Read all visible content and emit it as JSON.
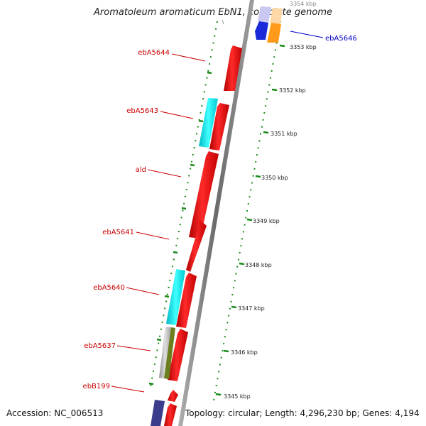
{
  "title": "Aromatoleum aromaticum EbN1, complete genome",
  "footer": {
    "accession": "Accession: NC_006513",
    "summary": "Topology: circular; Length: 4,296,230 bp; Genes: 4,194"
  },
  "colors": {
    "gene_red": "#ff1a1a",
    "cyan": "#00e8f0",
    "olive": "#6b7f1e",
    "grey": "#b8b8b8",
    "navy": "#3c3c8c",
    "blue": "#1a2ad8",
    "orange": "#ff9a1a",
    "lavender": "#c8c8f0",
    "peach": "#ffd8a8",
    "green_tick": "#1a8a1a",
    "backbone": "#8c8c8c",
    "label_red": "#cc0000",
    "label_blue": "#0000cc"
  },
  "gene_labels": [
    {
      "name": "ebA5646",
      "color": "blue"
    },
    {
      "name": "ebA5644",
      "color": "red"
    },
    {
      "name": "ebA5643",
      "color": "red"
    },
    {
      "name": "ald",
      "color": "red"
    },
    {
      "name": "ebA5641",
      "color": "red"
    },
    {
      "name": "ebA5640",
      "color": "red"
    },
    {
      "name": "ebA5637",
      "color": "red"
    },
    {
      "name": "ebB199",
      "color": "red"
    }
  ],
  "scale_ticks": [
    "3354 kbp",
    "3353 kbp",
    "3352 kbp",
    "3351 kbp",
    "3350 kbp",
    "3349 kbp",
    "3348 kbp",
    "3347 kbp",
    "3346 kbp",
    "3345 kbp"
  ]
}
